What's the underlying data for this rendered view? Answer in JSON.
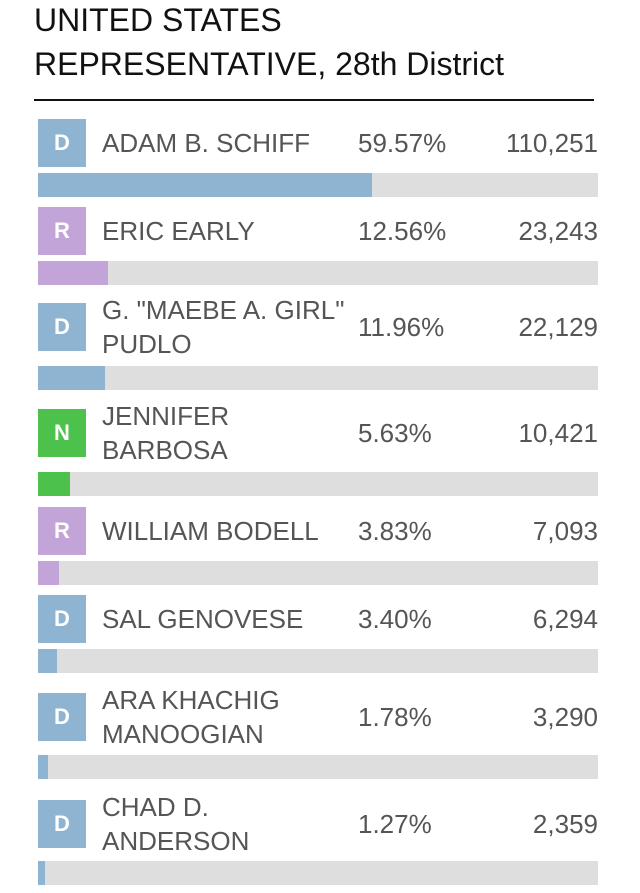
{
  "race": {
    "title_line1": "UNITED STATES",
    "title_line2": "REPRESENTATIVE, 28th District"
  },
  "party_colors": {
    "D": "#8fb4d2",
    "R": "#c3a4d8",
    "N": "#4cc14c"
  },
  "candidates": [
    {
      "party": "D",
      "name": "ADAM B. SCHIFF",
      "percent": "59.57%",
      "share": 0.5957,
      "votes": "110,251"
    },
    {
      "party": "R",
      "name": "ERIC EARLY",
      "percent": "12.56%",
      "share": 0.1256,
      "votes": "23,243"
    },
    {
      "party": "D",
      "name": "G. \"MAEBE A. GIRL\" PUDLO",
      "percent": "11.96%",
      "share": 0.1196,
      "votes": "22,129"
    },
    {
      "party": "N",
      "name": "JENNIFER BARBOSA",
      "percent": "5.63%",
      "share": 0.0563,
      "votes": "10,421"
    },
    {
      "party": "R",
      "name": "WILLIAM BODELL",
      "percent": "3.83%",
      "share": 0.0383,
      "votes": "7,093"
    },
    {
      "party": "D",
      "name": "SAL GENOVESE",
      "percent": "3.40%",
      "share": 0.034,
      "votes": "6,294"
    },
    {
      "party": "D",
      "name": "ARA KHACHIG MANOOGIAN",
      "percent": "1.78%",
      "share": 0.0178,
      "votes": "3,290"
    },
    {
      "party": "D",
      "name": "CHAD D. ANDERSON",
      "percent": "1.27%",
      "share": 0.0127,
      "votes": "2,359"
    }
  ]
}
